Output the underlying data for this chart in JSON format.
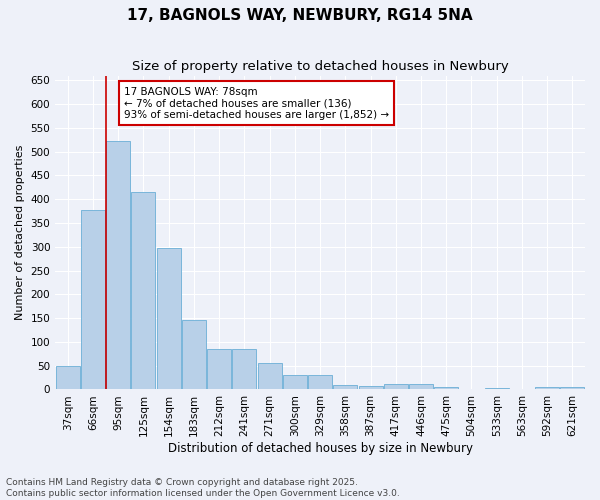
{
  "title": "17, BAGNOLS WAY, NEWBURY, RG14 5NA",
  "subtitle": "Size of property relative to detached houses in Newbury",
  "xlabel": "Distribution of detached houses by size in Newbury",
  "ylabel": "Number of detached properties",
  "categories": [
    "37sqm",
    "66sqm",
    "95sqm",
    "125sqm",
    "154sqm",
    "183sqm",
    "212sqm",
    "241sqm",
    "271sqm",
    "300sqm",
    "329sqm",
    "358sqm",
    "387sqm",
    "417sqm",
    "446sqm",
    "475sqm",
    "504sqm",
    "533sqm",
    "563sqm",
    "592sqm",
    "621sqm"
  ],
  "values": [
    50,
    378,
    522,
    415,
    298,
    145,
    85,
    85,
    55,
    30,
    30,
    10,
    8,
    12,
    12,
    5,
    0,
    3,
    0,
    5,
    5
  ],
  "bar_color": "#b8d0e8",
  "bar_edge_color": "#6aaed6",
  "vline_color": "#cc0000",
  "vline_x": 1.5,
  "annotation_box_text": "17 BAGNOLS WAY: 78sqm\n← 7% of detached houses are smaller (136)\n93% of semi-detached houses are larger (1,852) →",
  "annotation_box_color": "#cc0000",
  "ylim": [
    0,
    660
  ],
  "yticks": [
    0,
    50,
    100,
    150,
    200,
    250,
    300,
    350,
    400,
    450,
    500,
    550,
    600,
    650
  ],
  "background_color": "#eef1f9",
  "grid_color": "#ffffff",
  "footnote": "Contains HM Land Registry data © Crown copyright and database right 2025.\nContains public sector information licensed under the Open Government Licence v3.0.",
  "title_fontsize": 11,
  "subtitle_fontsize": 9.5,
  "xlabel_fontsize": 8.5,
  "ylabel_fontsize": 8,
  "tick_fontsize": 7.5,
  "footnote_fontsize": 6.5,
  "ann_fontsize": 7.5
}
